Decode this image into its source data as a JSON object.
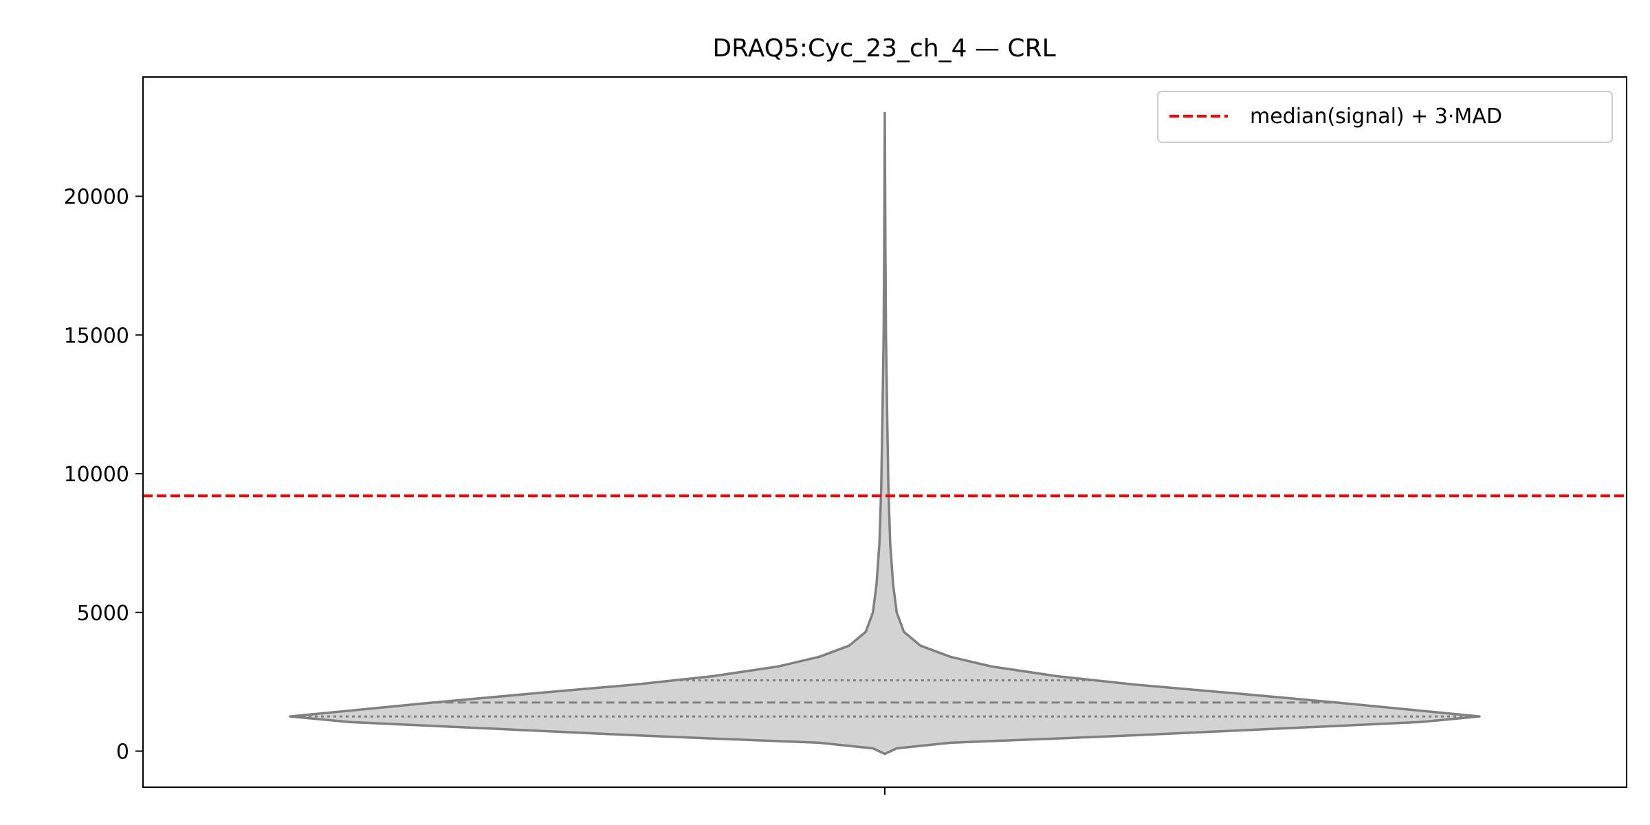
{
  "chart_data": {
    "type": "violin",
    "title": "DRAQ5:Cyc_23_ch_4 — CRL",
    "xlabel": "",
    "ylabel": "",
    "ylim": [
      -1300,
      24300
    ],
    "yticks": [
      0,
      5000,
      10000,
      15000,
      20000
    ],
    "ytick_labels": [
      "0",
      "5000",
      "10000",
      "15000",
      "20000"
    ],
    "grid": false,
    "violin": {
      "fill_color": "#d3d3d3",
      "edge_color": "#808080",
      "min": -100,
      "max": 23000,
      "quartiles": {
        "q1": 1250,
        "median": 1750,
        "q3": 2550
      },
      "density_profile": [
        {
          "y": -100,
          "half_width": 0.0
        },
        {
          "y": 100,
          "half_width": 0.02
        },
        {
          "y": 300,
          "half_width": 0.11
        },
        {
          "y": 550,
          "half_width": 0.4
        },
        {
          "y": 800,
          "half_width": 0.65
        },
        {
          "y": 1050,
          "half_width": 0.9
        },
        {
          "y": 1250,
          "half_width": 1.0
        },
        {
          "y": 1500,
          "half_width": 0.88
        },
        {
          "y": 1750,
          "half_width": 0.76
        },
        {
          "y": 2100,
          "half_width": 0.58
        },
        {
          "y": 2400,
          "half_width": 0.42
        },
        {
          "y": 2700,
          "half_width": 0.29
        },
        {
          "y": 3050,
          "half_width": 0.18
        },
        {
          "y": 3400,
          "half_width": 0.11
        },
        {
          "y": 3800,
          "half_width": 0.06
        },
        {
          "y": 4300,
          "half_width": 0.032
        },
        {
          "y": 5000,
          "half_width": 0.02
        },
        {
          "y": 6000,
          "half_width": 0.014
        },
        {
          "y": 7500,
          "half_width": 0.009
        },
        {
          "y": 9500,
          "half_width": 0.006
        },
        {
          "y": 12000,
          "half_width": 0.004
        },
        {
          "y": 15000,
          "half_width": 0.002
        },
        {
          "y": 18000,
          "half_width": 0.001
        },
        {
          "y": 23000,
          "half_width": 0.0
        }
      ]
    },
    "threshold_line": {
      "y": 9200,
      "color": "#ff0000",
      "style": "dashed",
      "label": "median(signal) + 3·MAD"
    },
    "legend": {
      "position": "top-right"
    }
  }
}
